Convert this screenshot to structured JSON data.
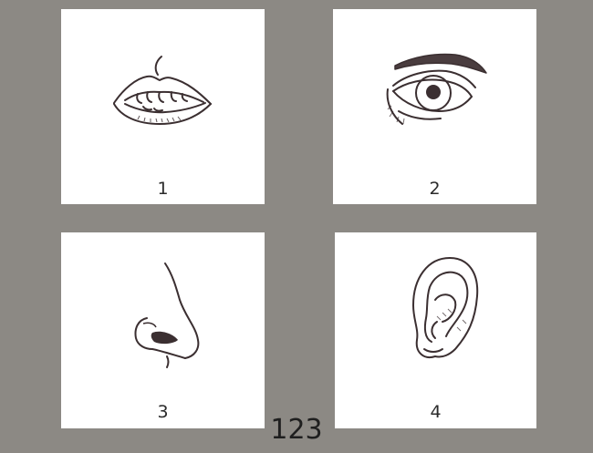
{
  "cards": [
    {
      "number": "1",
      "icon": "mouth-icon"
    },
    {
      "number": "2",
      "icon": "eye-icon"
    },
    {
      "number": "3",
      "icon": "nose-icon"
    },
    {
      "number": "4",
      "icon": "ear-icon"
    }
  ],
  "page_number": "123",
  "colors": {
    "background": "#8c8984",
    "card": "#ffffff",
    "ink": "#3b2f31"
  }
}
